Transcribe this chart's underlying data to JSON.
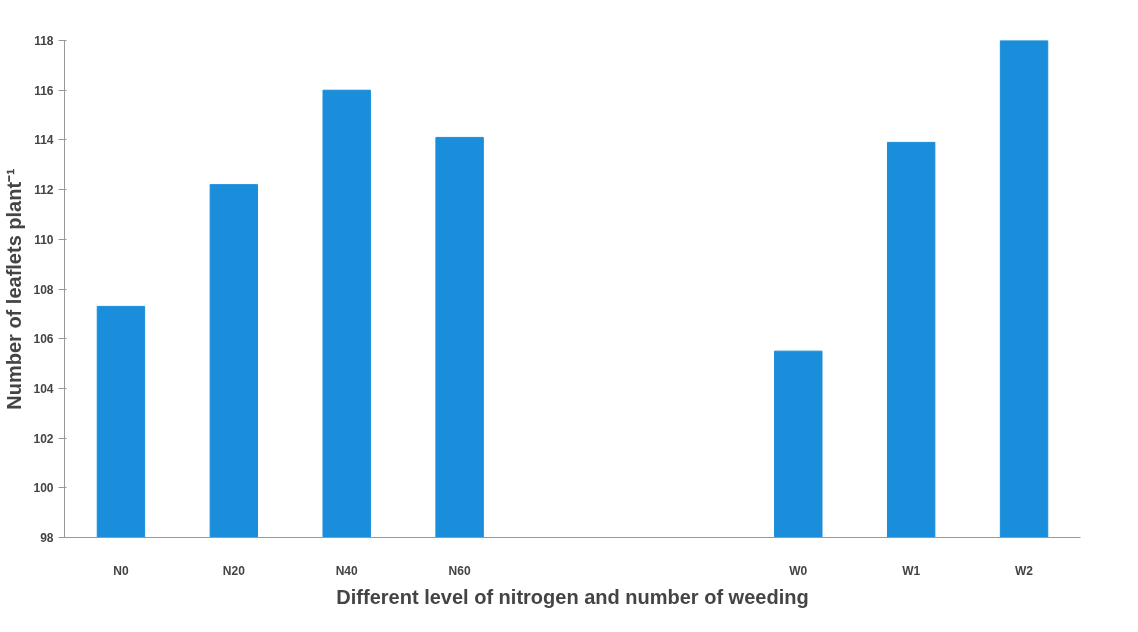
{
  "chart_data": {
    "type": "bar",
    "xlabel": "Different level of nitrogen and number of weeding",
    "ylabel": "Number of leaflets plant⁻¹",
    "categories": [
      "N0",
      "N20",
      "N40",
      "N60",
      null,
      null,
      "W0",
      "W1",
      "W2"
    ],
    "values": [
      107.3,
      112.2,
      116.0,
      114.1,
      null,
      null,
      105.5,
      113.9,
      118.0
    ],
    "color": "#1a8ddb",
    "ylim": [
      98,
      118
    ],
    "yticks": [
      98,
      100,
      102,
      104,
      106,
      108,
      110,
      112,
      114,
      116,
      118
    ],
    "grid": false
  }
}
